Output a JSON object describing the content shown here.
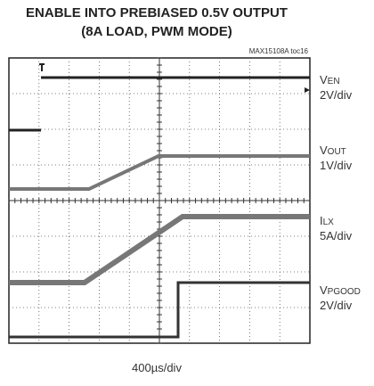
{
  "title": [
    "ENABLE INTO PREBIASED 0.5V OUTPUT",
    "(8A LOAD, PWM MODE)"
  ],
  "figure_id": "MAX15108A toc16",
  "channels": [
    {
      "symbol": "V",
      "subscript": "EN",
      "scale": "2V/div"
    },
    {
      "symbol": "V",
      "subscript": "OUT",
      "scale": "1V/div"
    },
    {
      "symbol": "I",
      "subscript": "LX",
      "scale": "5A/div"
    },
    {
      "symbol": "V",
      "subscript": "PGOOD",
      "scale": "2V/div"
    }
  ],
  "timebase": "400µs/div"
}
